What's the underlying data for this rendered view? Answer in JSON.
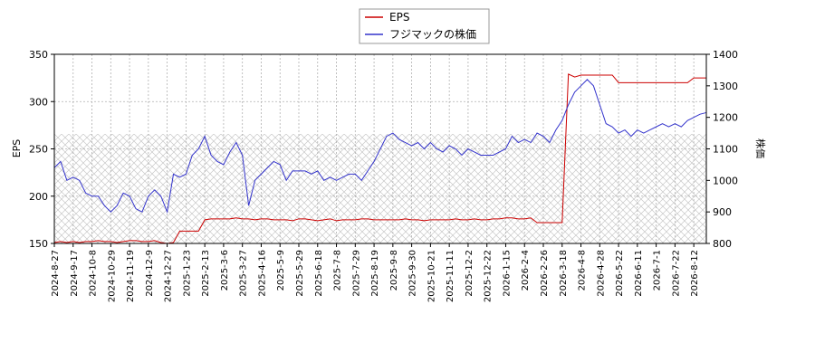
{
  "chart_data": {
    "type": "line",
    "categories": [
      "2024-8-27",
      null,
      null,
      "2024-9-17",
      null,
      null,
      "2024-10-8",
      null,
      null,
      "2024-10-29",
      null,
      null,
      "2024-11-19",
      null,
      null,
      "2024-12-9",
      null,
      null,
      "2024-12-27",
      null,
      null,
      "2025-1-23",
      null,
      null,
      "2025-2-13",
      null,
      null,
      "2025-3-6",
      null,
      null,
      "2025-3-27",
      null,
      null,
      "2025-4-16",
      null,
      null,
      "2025-5-9",
      null,
      null,
      "2025-5-29",
      null,
      null,
      "2025-6-18",
      null,
      null,
      "2025-7-8",
      null,
      null,
      "2025-7-29",
      null,
      null,
      "2025-8-19",
      null,
      null,
      "2025-9-8",
      null,
      null,
      "2025-9-30",
      null,
      null,
      "2025-10-21",
      null,
      null,
      "2025-11-11",
      null,
      null,
      "2025-12-2",
      null,
      null,
      "2025-12-22",
      null,
      null,
      "2026-1-15",
      null,
      null,
      "2026-2-4",
      null,
      null,
      "2026-2-26",
      null,
      null,
      "2026-3-18",
      null,
      null,
      "2026-4-8",
      null,
      null,
      "2026-4-28",
      null,
      null,
      "2026-5-22",
      null,
      null,
      "2026-6-11",
      null,
      null,
      "2026-7-1",
      null,
      null,
      "2026-7-22",
      null,
      null,
      "2026-8-12",
      null,
      null
    ],
    "series": [
      {
        "name": "EPS",
        "color": "#cc0000",
        "values": [
          151,
          152,
          151,
          152,
          151,
          152,
          152,
          153,
          152,
          152,
          151,
          152,
          153,
          153,
          152,
          152,
          153,
          151,
          150,
          151,
          163,
          163,
          163,
          163,
          175,
          176,
          176,
          176,
          176,
          177,
          176,
          176,
          175,
          176,
          176,
          175,
          175,
          175,
          174,
          176,
          176,
          175,
          174,
          175,
          176,
          174,
          175,
          175,
          175,
          176,
          176,
          175,
          175,
          175,
          175,
          175,
          176,
          175,
          175,
          174,
          175,
          175,
          175,
          175,
          176,
          175,
          175,
          176,
          175,
          175,
          176,
          176,
          177,
          177,
          176,
          176,
          177,
          172,
          172,
          172,
          172,
          172,
          329,
          326,
          328,
          328,
          328,
          328,
          328,
          328,
          320,
          320,
          320,
          320,
          320,
          320,
          320,
          320,
          320,
          320,
          320,
          320,
          325,
          325,
          325
        ]
      },
      {
        "name": "フジマックの株価",
        "color": "#3333cc",
        "axis": "y2",
        "values": [
          1040,
          1060,
          1000,
          1010,
          1000,
          960,
          950,
          950,
          920,
          900,
          920,
          960,
          950,
          910,
          900,
          950,
          970,
          950,
          900,
          1020,
          1010,
          1020,
          1080,
          1100,
          1140,
          1080,
          1060,
          1050,
          1090,
          1120,
          1080,
          920,
          1000,
          1020,
          1040,
          1060,
          1050,
          1000,
          1030,
          1030,
          1030,
          1020,
          1030,
          1000,
          1010,
          1000,
          1010,
          1020,
          1020,
          1000,
          1030,
          1060,
          1100,
          1140,
          1150,
          1130,
          1120,
          1110,
          1120,
          1100,
          1120,
          1100,
          1090,
          1110,
          1100,
          1080,
          1100,
          1090,
          1080,
          1080,
          1080,
          1090,
          1100,
          1140,
          1120,
          1130,
          1120,
          1150,
          1140,
          1120,
          1160,
          1190,
          1240,
          1280,
          1300,
          1320,
          1300,
          1240,
          1180,
          1170,
          1150,
          1160,
          1140,
          1160,
          1150,
          1160,
          1170,
          1180,
          1170,
          1180,
          1170,
          1190,
          1200,
          1210,
          1215
        ]
      }
    ],
    "ylabel": "EPS",
    "y2label": "株価",
    "ylim": [
      150,
      350
    ],
    "yticks": [
      150,
      200,
      250,
      300,
      350
    ],
    "y2lim": [
      800,
      1400
    ],
    "y2ticks": [
      800,
      900,
      1000,
      1100,
      1200,
      1300,
      1400
    ],
    "grid": true,
    "legend": "top"
  }
}
